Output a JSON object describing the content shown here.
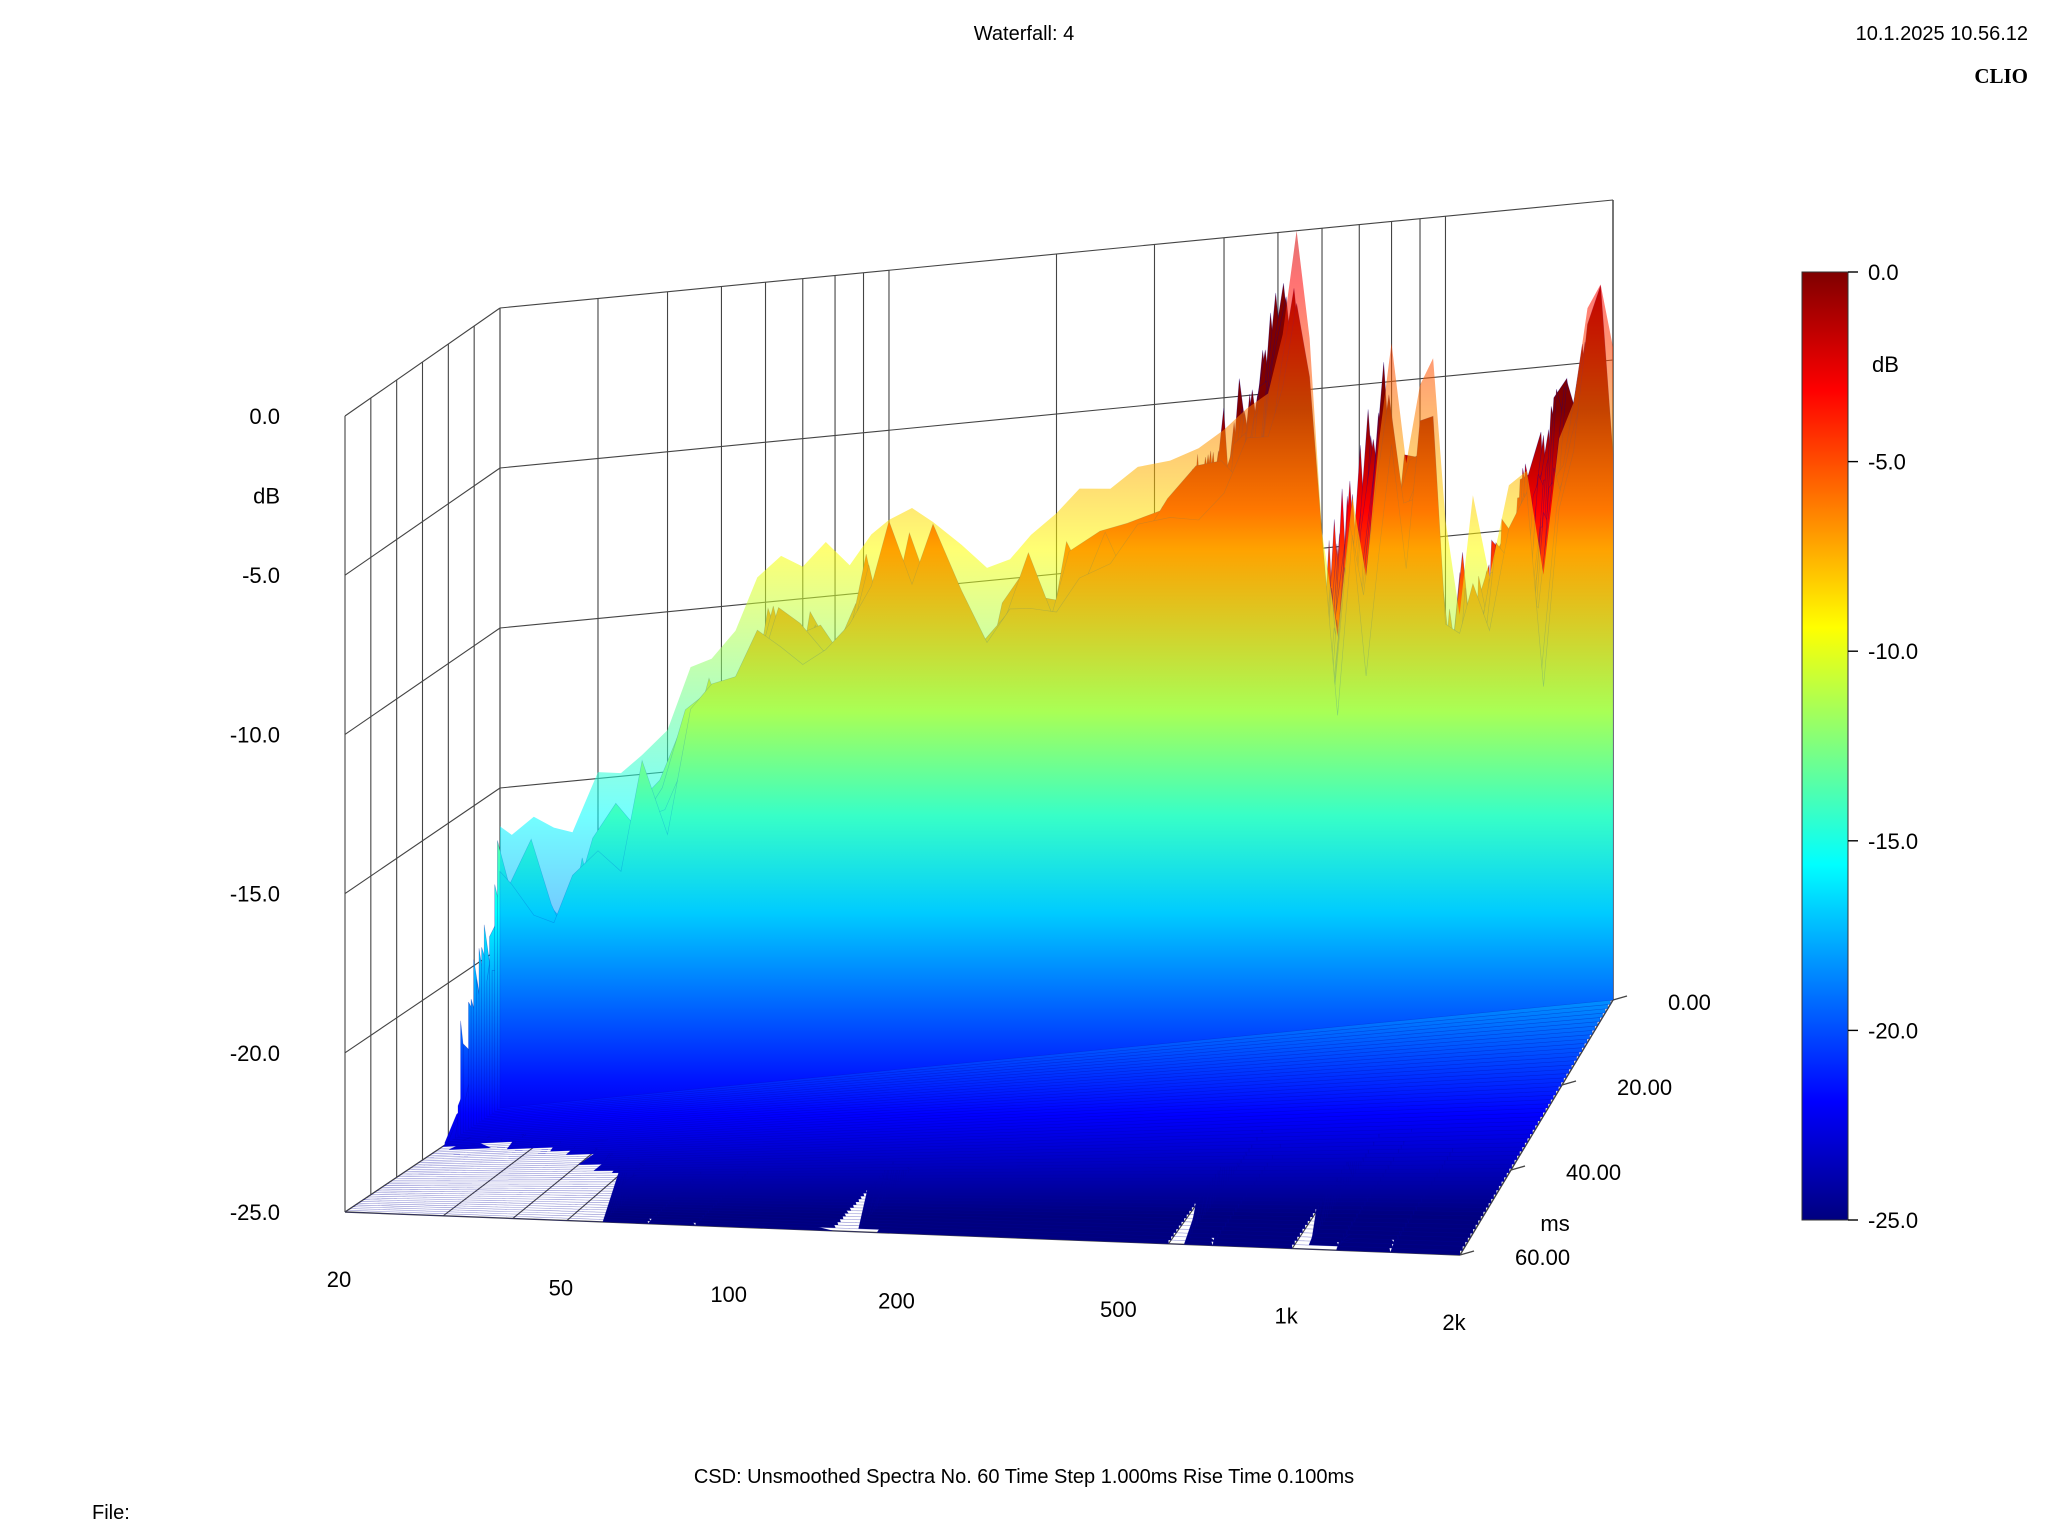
{
  "header": {
    "title": "Waterfall: 4",
    "datetime": "10.1.2025 10.56.12",
    "brand": "CLIO"
  },
  "footer": {
    "settings": "CSD:   Unsmoothed   Spectra No. 60   Time Step 1.000ms   Rise Time 0.100ms",
    "file_label": "File:"
  },
  "chart_data": {
    "type": "waterfall",
    "title": "Waterfall: 4",
    "x_axis": {
      "scale": "log",
      "range_hz": [
        20,
        2000
      ],
      "ticks": [
        {
          "value": 20,
          "label": "20"
        },
        {
          "value": 50,
          "label": "50"
        },
        {
          "value": 100,
          "label": "100"
        },
        {
          "value": 200,
          "label": "200"
        },
        {
          "value": 500,
          "label": "500"
        },
        {
          "value": 1000,
          "label": "1k"
        },
        {
          "value": 2000,
          "label": "2k"
        }
      ]
    },
    "y_axis": {
      "label": "dB",
      "range": [
        -25,
        0
      ],
      "ticks": [
        {
          "value": 0,
          "label": "0.0"
        },
        {
          "value": -5,
          "label": "-5.0"
        },
        {
          "value": -10,
          "label": "-10.0"
        },
        {
          "value": -15,
          "label": "-15.0"
        },
        {
          "value": -20,
          "label": "-20.0"
        },
        {
          "value": -25,
          "label": "-25.0"
        }
      ]
    },
    "z_axis": {
      "label": "ms",
      "range": [
        0,
        60
      ],
      "ticks": [
        {
          "value": 0,
          "label": "0.00"
        },
        {
          "value": 20,
          "label": "20.00"
        },
        {
          "value": 40,
          "label": "40.00"
        },
        {
          "value": 60,
          "label": "60.00"
        }
      ]
    },
    "colorbar": {
      "label": "dB",
      "range": [
        -25,
        0
      ],
      "ticks": [
        {
          "value": 0,
          "label": "0.0"
        },
        {
          "value": -5,
          "label": "-5.0"
        },
        {
          "value": -10,
          "label": "-10.0"
        },
        {
          "value": -15,
          "label": "-15.0"
        },
        {
          "value": -20,
          "label": "-20.0"
        },
        {
          "value": -25,
          "label": "-25.0"
        }
      ],
      "colormap": [
        "#00007f",
        "#0000ff",
        "#007fff",
        "#00ffff",
        "#7fff7f",
        "#ffff00",
        "#ff7f00",
        "#ff0000",
        "#7f0000"
      ]
    },
    "spectra_count": 60,
    "time_step_ms": 1.0,
    "initial_spectrum": {
      "freq_hz": [
        20,
        21,
        23,
        25,
        27,
        30,
        33,
        36,
        40,
        44,
        48,
        53,
        58,
        64,
        70,
        77,
        85,
        93,
        100,
        110,
        120,
        135,
        150,
        165,
        180,
        200,
        220,
        250,
        280,
        320,
        360,
        400,
        440,
        480,
        510,
        540,
        570,
        600,
        640,
        680,
        720,
        760,
        800,
        850,
        900,
        950,
        1000,
        1060,
        1120,
        1200,
        1300,
        1400,
        1500,
        1600,
        1700,
        1800,
        1900,
        2000
      ],
      "db": [
        -16.2,
        -16.5,
        -16.0,
        -16.4,
        -16.6,
        -14.8,
        -14.9,
        -14.4,
        -13.7,
        -11.8,
        -11.6,
        -10.8,
        -9.2,
        -8.6,
        -9.0,
        -8.3,
        -9.1,
        -8.2,
        -7.8,
        -7.5,
        -8.0,
        -8.8,
        -9.6,
        -9.4,
        -8.7,
        -8.1,
        -7.4,
        -7.5,
        -6.9,
        -6.8,
        -6.5,
        -6.0,
        -5.4,
        -5.0,
        -3.2,
        0.0,
        -3.4,
        -9.5,
        -12.8,
        -8.5,
        -11.0,
        -6.8,
        -3.8,
        -7.6,
        -5.2,
        -4.4,
        -9.5,
        -12.5,
        -8.8,
        -11.4,
        -8.6,
        -8.2,
        -11.5,
        -7.3,
        -6.2,
        -3.3,
        -2.6,
        -4.6
      ]
    }
  }
}
